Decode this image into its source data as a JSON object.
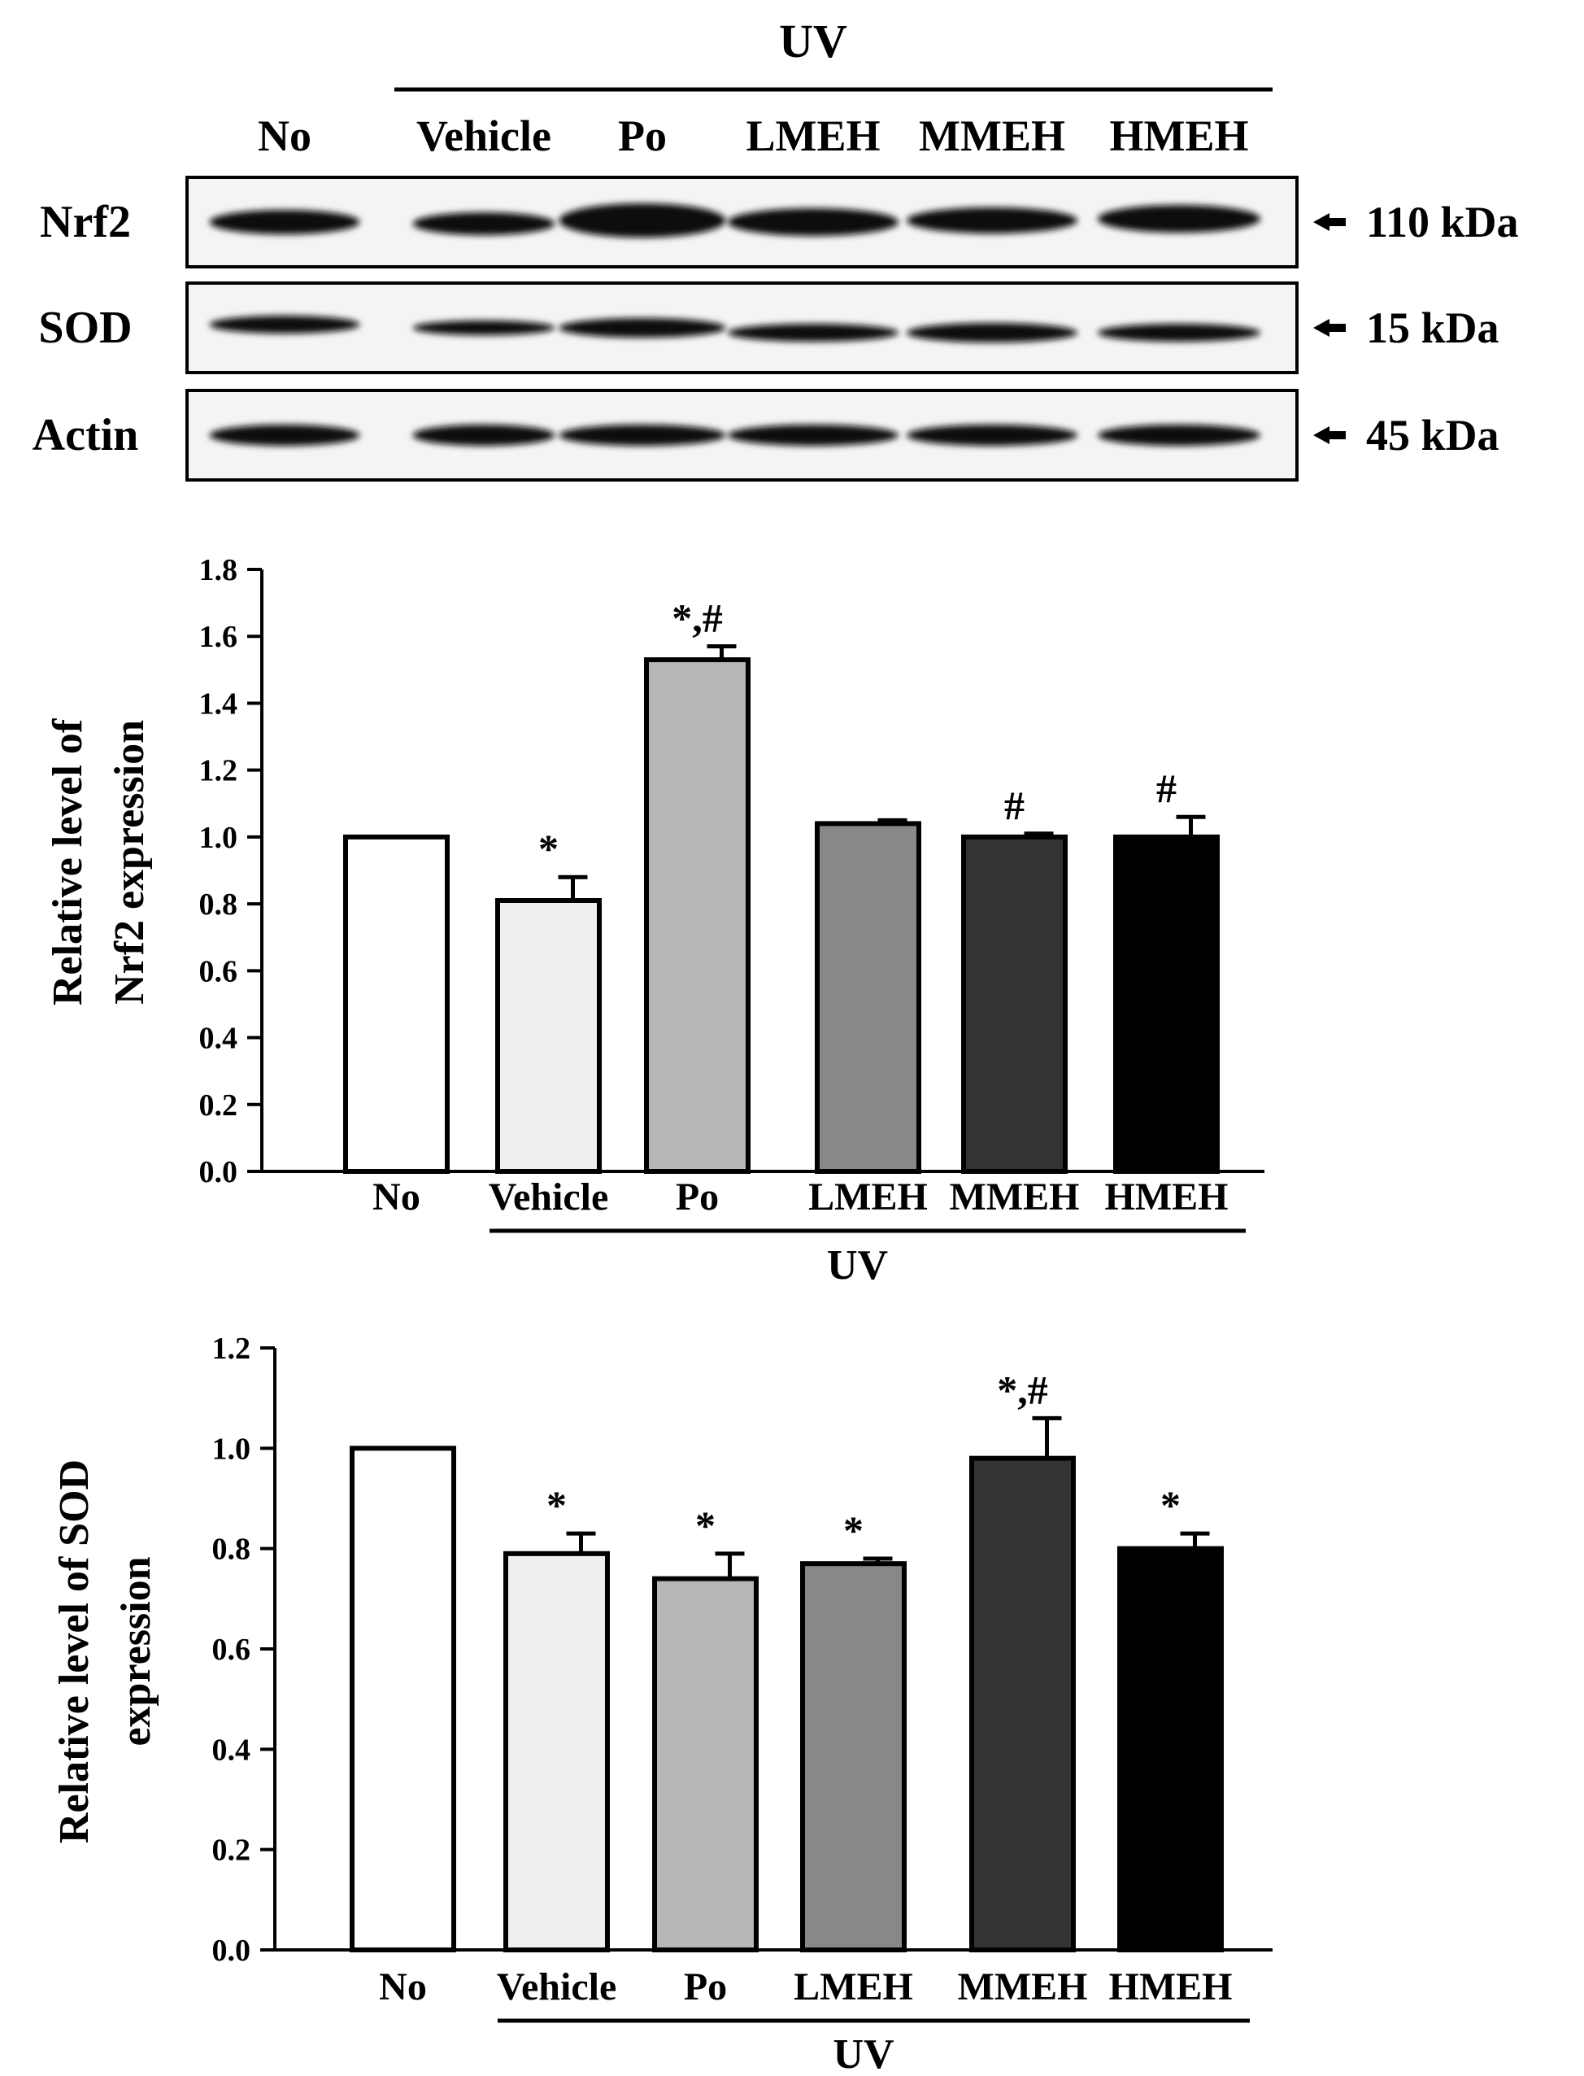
{
  "blot": {
    "treatment_label": "UV",
    "lanes": [
      "No",
      "Vehicle",
      "Po",
      "LMEH",
      "MMEH",
      "HMEH"
    ],
    "rows": [
      {
        "protein": "Nrf2",
        "size": "110 kDa"
      },
      {
        "protein": "SOD",
        "size": "15 kDa"
      },
      {
        "protein": "Actin",
        "size": "45 kDa"
      }
    ]
  },
  "chart_data": [
    {
      "type": "bar",
      "categories": [
        "No",
        "Vehicle",
        "Po",
        "LMEH",
        "MMEH",
        "HMEH"
      ],
      "values": [
        1.0,
        0.81,
        1.53,
        1.04,
        1.0,
        1.0
      ],
      "errors": [
        0.0,
        0.07,
        0.04,
        0.01,
        0.01,
        0.06
      ],
      "annotations": [
        "",
        "*",
        "*,#",
        "",
        "#",
        "#"
      ],
      "bar_colors": [
        "#ffffff",
        "#efefef",
        "#b7b7b7",
        "#888888",
        "#333333",
        "#000000"
      ],
      "ylabel_lines": [
        "Relative level of",
        "Nrf2 expression"
      ],
      "group_label": "UV",
      "ylim": [
        0,
        1.8
      ],
      "yticks": [
        0.0,
        0.2,
        0.4,
        0.6,
        0.8,
        1.0,
        1.2,
        1.4,
        1.6,
        1.8
      ],
      "tick_labels": [
        "0.0",
        "0.2",
        "0.4",
        "0.6",
        "0.8",
        "1.0",
        "1.2",
        "1.4",
        "1.6",
        "1.8"
      ]
    },
    {
      "type": "bar",
      "categories": [
        "No",
        "Vehicle",
        "Po",
        "LMEH",
        "MMEH",
        "HMEH"
      ],
      "values": [
        1.0,
        0.79,
        0.74,
        0.77,
        0.98,
        0.8
      ],
      "errors": [
        0.0,
        0.04,
        0.05,
        0.01,
        0.08,
        0.03
      ],
      "annotations": [
        "",
        "*",
        "*",
        "*",
        "*,#",
        "*"
      ],
      "bar_colors": [
        "#ffffff",
        "#efefef",
        "#b7b7b7",
        "#888888",
        "#333333",
        "#000000"
      ],
      "ylabel_lines": [
        "Relative level of SOD",
        "expression"
      ],
      "group_label": "UV",
      "ylim": [
        0,
        1.2
      ],
      "yticks": [
        0.0,
        0.2,
        0.4,
        0.6,
        0.8,
        1.0,
        1.2
      ],
      "tick_labels": [
        "0.0",
        "0.2",
        "0.4",
        "0.6",
        "0.8",
        "1.0",
        "1.2"
      ]
    }
  ]
}
